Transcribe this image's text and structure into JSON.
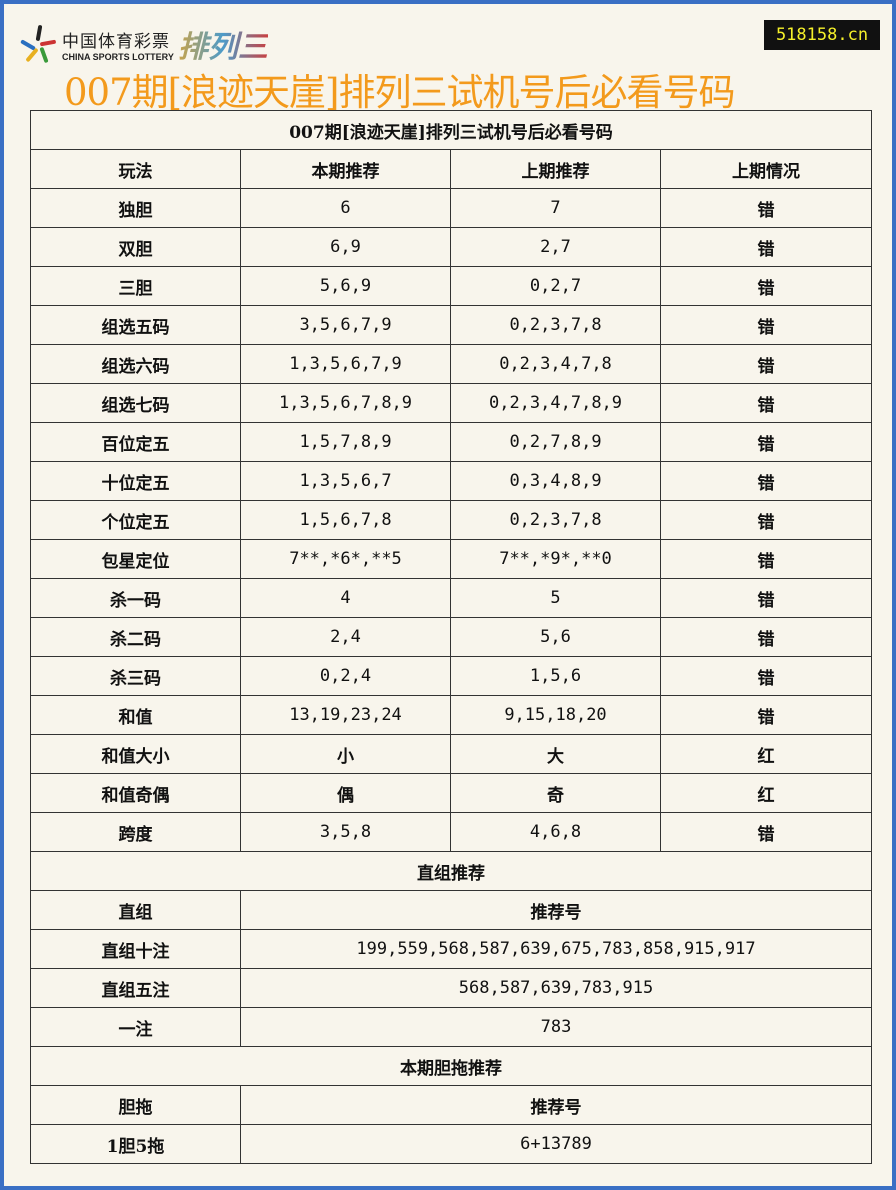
{
  "logo": {
    "cn": "中国体育彩票",
    "en": "CHINA SPORTS LOTTERY",
    "game": "排列三"
  },
  "site_badge": "518158.cn",
  "page_title": "007期[浪迹天崖]排列三试机号后必看号码",
  "table": {
    "title": "007期[浪迹天崖]排列三试机号后必看号码",
    "headers": [
      "玩法",
      "本期推荐",
      "上期推荐",
      "上期情况"
    ],
    "rows": [
      [
        "独胆",
        "6",
        "7",
        "错"
      ],
      [
        "双胆",
        "6,9",
        "2,7",
        "错"
      ],
      [
        "三胆",
        "5,6,9",
        "0,2,7",
        "错"
      ],
      [
        "组选五码",
        "3,5,6,7,9",
        "0,2,3,7,8",
        "错"
      ],
      [
        "组选六码",
        "1,3,5,6,7,9",
        "0,2,3,4,7,8",
        "错"
      ],
      [
        "组选七码",
        "1,3,5,6,7,8,9",
        "0,2,3,4,7,8,9",
        "错"
      ],
      [
        "百位定五",
        "1,5,7,8,9",
        "0,2,7,8,9",
        "错"
      ],
      [
        "十位定五",
        "1,3,5,6,7",
        "0,3,4,8,9",
        "错"
      ],
      [
        "个位定五",
        "1,5,6,7,8",
        "0,2,3,7,8",
        "错"
      ],
      [
        "包星定位",
        "7**,*6*,**5",
        "7**,*9*,**0",
        "错"
      ],
      [
        "杀一码",
        "4",
        "5",
        "错"
      ],
      [
        "杀二码",
        "2,4",
        "5,6",
        "错"
      ],
      [
        "杀三码",
        "0,2,4",
        "1,5,6",
        "错"
      ],
      [
        "和值",
        "13,19,23,24",
        "9,15,18,20",
        "错"
      ],
      [
        "和值大小",
        "小",
        "大",
        "红"
      ],
      [
        "和值奇偶",
        "偶",
        "奇",
        "红"
      ],
      [
        "跨度",
        "3,5,8",
        "4,6,8",
        "错"
      ]
    ],
    "zhizu_section": "直组推荐",
    "zhizu_headers": [
      "直组",
      "推荐号"
    ],
    "zhizu_rows": [
      [
        "直组十注",
        "199,559,568,587,639,675,783,858,915,917"
      ],
      [
        "直组五注",
        "568,587,639,783,915"
      ],
      [
        "一注",
        "783"
      ]
    ],
    "dantuo_section": "本期胆拖推荐",
    "dantuo_headers": [
      "胆拖",
      "推荐号"
    ],
    "dantuo_rows": [
      [
        "1胆5拖",
        "6+13789"
      ]
    ]
  }
}
